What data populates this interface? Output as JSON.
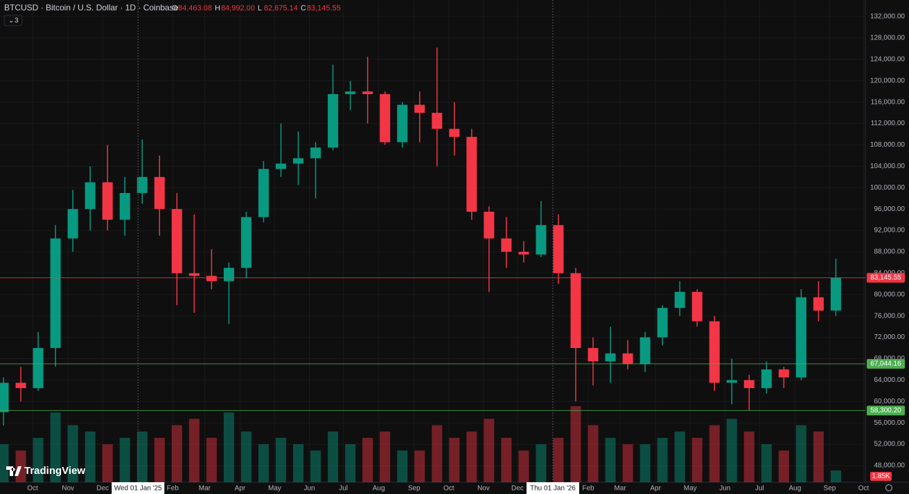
{
  "chart_data": {
    "type": "candlestick",
    "title": "BTCUSD · Bitcoin / U.S. Dollar · 1D · Coinbase",
    "ohlc_legend": [
      {
        "key": "O",
        "value": 84463.08,
        "label": "84,463.08"
      },
      {
        "key": "H",
        "value": 84992.0,
        "label": "84,992.00"
      },
      {
        "key": "L",
        "value": 82675.14,
        "label": "82,675.14"
      },
      {
        "key": "C",
        "value": 83145.55,
        "label": "83,145.55"
      }
    ],
    "indicator_count": "3",
    "logo": "TradingView",
    "up_color": "#089981",
    "down_color": "#f23645",
    "open": [
      58000,
      63500,
      62500,
      70000,
      90500,
      96000,
      101000,
      94000,
      99000,
      102000,
      96000,
      84000,
      83500,
      82500,
      85000,
      94500,
      103500,
      104500,
      105500,
      107500,
      117500,
      118000,
      117500,
      108500,
      115500,
      114000,
      111000,
      109500,
      95500,
      90500,
      88000,
      87500,
      93000,
      84000,
      70000,
      67500,
      69000,
      67000,
      72000,
      77500,
      80500,
      75000,
      63500,
      64000,
      62500,
      66000,
      64500,
      79500,
      77000
    ],
    "high": [
      64500,
      66500,
      73000,
      93000,
      99600,
      104000,
      108000,
      102000,
      109000,
      106000,
      99000,
      95000,
      88500,
      86000,
      95500,
      105000,
      112000,
      110500,
      108500,
      123000,
      120000,
      124500,
      118000,
      116000,
      118000,
      126200,
      116000,
      111000,
      96500,
      94500,
      90000,
      97500,
      95000,
      85000,
      72000,
      74000,
      71500,
      73000,
      78000,
      82500,
      81000,
      76000,
      68000,
      65000,
      67500,
      66500,
      81000,
      82500,
      86700
    ],
    "low": [
      55500,
      60000,
      62000,
      66500,
      88000,
      92000,
      92000,
      91000,
      97000,
      91000,
      78000,
      76600,
      81000,
      74500,
      83000,
      93500,
      102000,
      100500,
      98000,
      107000,
      114500,
      112000,
      108000,
      107500,
      108500,
      104000,
      106000,
      94000,
      80500,
      85000,
      86000,
      87000,
      82000,
      60000,
      63000,
      63500,
      66000,
      65500,
      70500,
      76000,
      74000,
      62000,
      59500,
      58300,
      61500,
      62500,
      64000,
      75000,
      76000
    ],
    "close": [
      63500,
      62500,
      70000,
      90500,
      96000,
      101000,
      94000,
      99000,
      102000,
      96000,
      84000,
      83500,
      82500,
      85000,
      94500,
      103500,
      104500,
      105500,
      107500,
      117500,
      118000,
      117500,
      108500,
      115500,
      114000,
      111000,
      109500,
      95500,
      90500,
      88000,
      87500,
      93000,
      84000,
      70000,
      67500,
      69000,
      67000,
      72000,
      77500,
      80500,
      75000,
      63500,
      64000,
      62500,
      66000,
      64500,
      79500,
      77000,
      83145.55
    ],
    "volume": {
      "values": [
        6,
        5,
        7,
        11,
        9,
        8,
        6,
        7,
        8,
        7,
        9,
        10,
        7,
        11,
        8,
        6,
        7,
        6,
        5,
        8,
        6,
        7,
        8,
        5,
        5,
        9,
        7,
        8,
        10,
        7,
        5,
        6,
        7,
        12,
        9,
        7,
        6,
        6,
        7,
        8,
        7,
        9,
        10,
        8,
        6,
        5,
        9,
        8,
        1.85
      ],
      "last_label": "1.85K"
    },
    "xlim": [
      -0.2,
      49.7
    ],
    "xticks": [
      {
        "value": 1.68,
        "label": "Oct"
      },
      {
        "value": 3.72,
        "label": "Nov"
      },
      {
        "value": 5.72,
        "label": "Dec"
      },
      {
        "value": 9.76,
        "label": "Feb"
      },
      {
        "value": 11.6,
        "label": "Mar"
      },
      {
        "value": 13.64,
        "label": "Apr"
      },
      {
        "value": 15.64,
        "label": "May"
      },
      {
        "value": 17.64,
        "label": "Jun"
      },
      {
        "value": 19.6,
        "label": "Jul"
      },
      {
        "value": 21.64,
        "label": "Aug"
      },
      {
        "value": 23.68,
        "label": "Sep"
      },
      {
        "value": 25.68,
        "label": "Oct"
      },
      {
        "value": 27.68,
        "label": "Nov"
      },
      {
        "value": 29.64,
        "label": "Dec"
      },
      {
        "value": 33.72,
        "label": "Feb"
      },
      {
        "value": 35.56,
        "label": "Mar"
      },
      {
        "value": 37.6,
        "label": "Apr"
      },
      {
        "value": 39.6,
        "label": "May"
      },
      {
        "value": 41.6,
        "label": "Jun"
      },
      {
        "value": 43.6,
        "label": "Jul"
      },
      {
        "value": 45.64,
        "label": "Aug"
      },
      {
        "value": 47.64,
        "label": "Sep"
      },
      {
        "value": 49.6,
        "label": "Oct"
      }
    ],
    "date_markers": [
      {
        "value": 7.76,
        "label": "Wed 01 Jan '25"
      },
      {
        "value": 31.68,
        "label": "Thu 01 Jan '26"
      }
    ],
    "ylim": [
      132000,
      48000
    ],
    "yticks": [
      {
        "value": 132000,
        "label": "132,000.00"
      },
      {
        "value": 128000,
        "label": "128,000.00"
      },
      {
        "value": 124000,
        "label": "124,000.00"
      },
      {
        "value": 120000,
        "label": "120,000.00"
      },
      {
        "value": 116000,
        "label": "116,000.00"
      },
      {
        "value": 112000,
        "label": "112,000.00"
      },
      {
        "value": 108000,
        "label": "108,000.00"
      },
      {
        "value": 104000,
        "label": "104,000.00"
      },
      {
        "value": 100000,
        "label": "100,000.00"
      },
      {
        "value": 96000,
        "label": "96,000.00"
      },
      {
        "value": 92000,
        "label": "92,000.00"
      },
      {
        "value": 88000,
        "label": "88,000.00"
      },
      {
        "value": 84000,
        "label": "84,000.00"
      },
      {
        "value": 80000,
        "label": "80,000.00"
      },
      {
        "value": 76000,
        "label": "76,000.00"
      },
      {
        "value": 72000,
        "label": "72,000.00"
      },
      {
        "value": 68000,
        "label": "68,000.00"
      },
      {
        "value": 64000,
        "label": "64,000.00"
      },
      {
        "value": 60000,
        "label": "60,000.00"
      },
      {
        "value": 56000,
        "label": "56,000.00"
      },
      {
        "value": 52000,
        "label": "52,000.00"
      },
      {
        "value": 48000,
        "label": "48,000.00"
      }
    ],
    "price_lines": [
      {
        "value": 83145.55,
        "label": "83,145.55",
        "color": "#f23645"
      },
      {
        "value": 67044.16,
        "label": "67,044.16",
        "color": "#4caf50"
      },
      {
        "value": 58300.2,
        "label": "58,300.20",
        "color": "#4caf50"
      }
    ]
  }
}
